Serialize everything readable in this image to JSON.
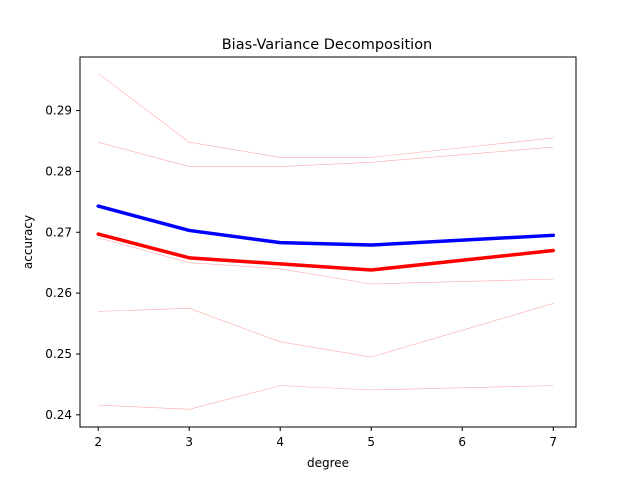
{
  "chart_data": {
    "type": "line",
    "title": "Bias-Variance Decomposition",
    "xlabel": "degree",
    "ylabel": "accuracy",
    "xlim": [
      1.8,
      7.25
    ],
    "ylim": [
      0.238,
      0.2988
    ],
    "xticks": [
      2,
      3,
      4,
      5,
      6,
      7
    ],
    "xtick_labels": [
      "2",
      "3",
      "4",
      "5",
      "6",
      "7"
    ],
    "yticks": [
      0.24,
      0.25,
      0.26,
      0.27,
      0.28,
      0.29
    ],
    "ytick_labels": [
      "0.24",
      "0.25",
      "0.26",
      "0.27",
      "0.28",
      "0.29"
    ],
    "grid": false,
    "x": [
      2,
      3,
      4,
      5,
      7
    ],
    "series": [
      {
        "values": [
          0.2961,
          0.2848,
          0.2823,
          0.2823,
          0.2855
        ],
        "color": "#ffaaaa",
        "weight": "thin"
      },
      {
        "values": [
          0.2848,
          0.2808,
          0.2808,
          0.2815,
          0.284
        ],
        "color": "#ffaaaa",
        "weight": "thin"
      },
      {
        "values": [
          0.2691,
          0.265,
          0.264,
          0.2615,
          0.2623
        ],
        "color": "#ffaaaa",
        "weight": "thin"
      },
      {
        "values": [
          0.257,
          0.2575,
          0.252,
          0.2495,
          0.2583
        ],
        "color": "#ffaaaa",
        "weight": "thin"
      },
      {
        "values": [
          0.2416,
          0.2409,
          0.2448,
          0.2441,
          0.2448
        ],
        "color": "#ffaaaa",
        "weight": "thin"
      },
      {
        "values": [
          0.2697,
          0.2658,
          0.2648,
          0.2638,
          0.267
        ],
        "color": "#ff0000",
        "weight": "thick"
      },
      {
        "values": [
          0.2743,
          0.2703,
          0.2683,
          0.2679,
          0.2695
        ],
        "color": "#0000ff",
        "weight": "thick"
      }
    ]
  }
}
